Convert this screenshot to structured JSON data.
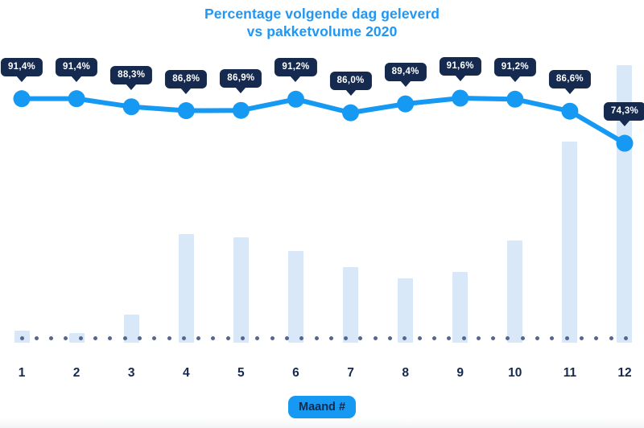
{
  "chart": {
    "title_line1": "Percentage volgende dag geleverd",
    "title_line2": "vs pakketvolume 2020",
    "x_axis_badge": "Maand #"
  },
  "colors": {
    "accent_blue": "#1699F2",
    "title_blue": "#2196F3",
    "navy_dark": "#152A4E",
    "bar_light_blue": "#D9E8F8",
    "baseline_dot_slate": "#55668C",
    "background": "#FFFFFF",
    "tooltip_text": "#FFFFFF"
  },
  "chart_data": {
    "type": "line",
    "subtype": "line with percentage tooltips over background volume bars",
    "title": "Percentage volgende dag geleverd",
    "subtitle": "vs pakketvolume 2020",
    "xlabel": "Maand #",
    "ylabel": "",
    "categories": [
      "1",
      "2",
      "3",
      "4",
      "5",
      "6",
      "7",
      "8",
      "9",
      "10",
      "11",
      "12"
    ],
    "series": [
      {
        "name": "Percentage volgende dag geleverd",
        "type": "line",
        "unit": "%",
        "values": [
          91.4,
          91.4,
          88.3,
          86.8,
          86.9,
          91.2,
          86.0,
          89.4,
          91.6,
          91.2,
          86.6,
          74.3
        ],
        "labels": [
          "91,4%",
          "91,4%",
          "88,3%",
          "86,8%",
          "86,9%",
          "91,2%",
          "86,0%",
          "89,4%",
          "91,6%",
          "91,2%",
          "86,6%",
          "74,3%"
        ]
      },
      {
        "name": "Pakketvolume 2020",
        "type": "bar",
        "unit": "relative height (no value axis shown)",
        "values": [
          4.3,
          3.5,
          10.1,
          39.1,
          38.0,
          33.0,
          27.2,
          23.2,
          25.5,
          36.8,
          72.5,
          100
        ]
      }
    ],
    "legend_position": "none",
    "grid": false,
    "baseline_style": "dotted row of slate dots at x-axis",
    "y_range_line_pct": [
      74.3,
      91.6
    ]
  }
}
